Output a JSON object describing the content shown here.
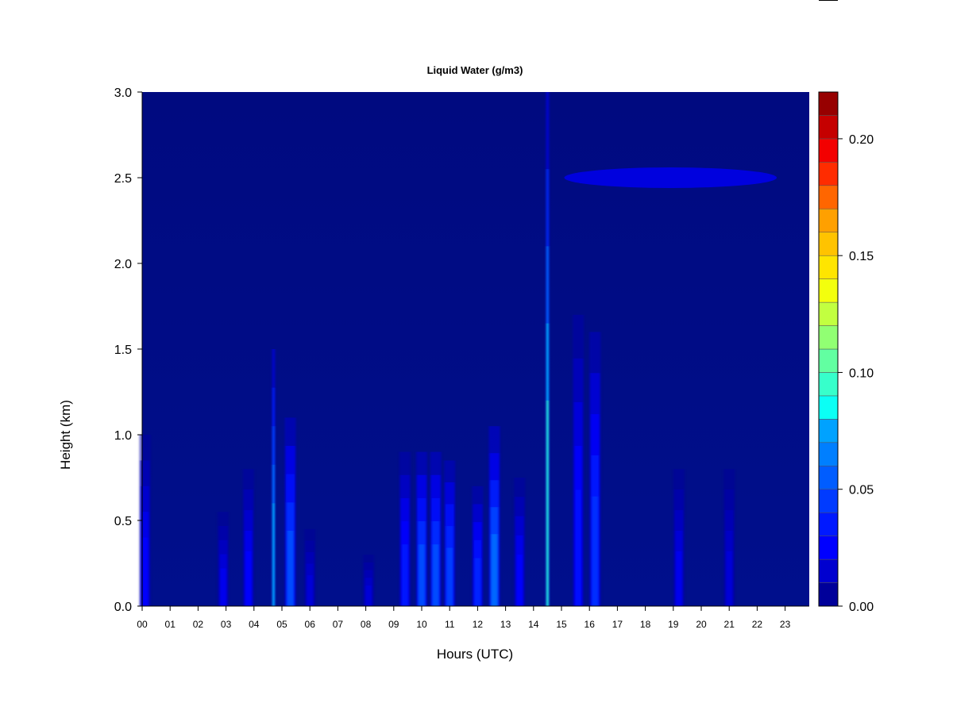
{
  "chart_data": {
    "type": "heatmap",
    "title": "Liquid Water (g/m3)",
    "xlabel": "Hours (UTC)",
    "ylabel": "Height (km)",
    "x_ticks": [
      "00",
      "01",
      "02",
      "03",
      "04",
      "05",
      "06",
      "07",
      "08",
      "09",
      "10",
      "11",
      "12",
      "13",
      "14",
      "15",
      "16",
      "17",
      "18",
      "19",
      "20",
      "21",
      "22",
      "23"
    ],
    "y_ticks": [
      "0.0",
      "0.5",
      "1.0",
      "1.5",
      "2.0",
      "2.5",
      "3.0"
    ],
    "xlim": [
      0,
      24
    ],
    "ylim": [
      0,
      3.0
    ],
    "colorbar": {
      "ticks": [
        "0.00",
        "0.05",
        "0.10",
        "0.15",
        "0.20"
      ],
      "tick_values": [
        0,
        0.05,
        0.1,
        0.15,
        0.2
      ],
      "range": [
        0,
        0.22
      ],
      "levels": 22,
      "colormap": "jet"
    },
    "background_value": 0.0,
    "features": [
      {
        "hour": 0.1,
        "top_km": 1.0,
        "max": 0.03
      },
      {
        "hour": 2.9,
        "top_km": 0.55,
        "max": 0.025
      },
      {
        "hour": 3.8,
        "top_km": 0.8,
        "max": 0.03
      },
      {
        "hour": 4.7,
        "top_km": 1.5,
        "max": 0.09
      },
      {
        "hour": 5.3,
        "top_km": 1.1,
        "max": 0.06
      },
      {
        "hour": 6.0,
        "top_km": 0.45,
        "max": 0.02
      },
      {
        "hour": 8.1,
        "top_km": 0.3,
        "max": 0.02
      },
      {
        "hour": 9.4,
        "top_km": 0.9,
        "max": 0.04
      },
      {
        "hour": 10.0,
        "top_km": 0.9,
        "max": 0.06
      },
      {
        "hour": 10.5,
        "top_km": 0.9,
        "max": 0.06
      },
      {
        "hour": 11.0,
        "top_km": 0.85,
        "max": 0.055
      },
      {
        "hour": 12.0,
        "top_km": 0.7,
        "max": 0.045
      },
      {
        "hour": 12.6,
        "top_km": 1.05,
        "max": 0.07
      },
      {
        "hour": 13.5,
        "top_km": 0.75,
        "max": 0.03
      },
      {
        "hour": 14.5,
        "top_km": 3.0,
        "max": 0.11
      },
      {
        "hour": 15.6,
        "top_km": 1.7,
        "max": 0.035
      },
      {
        "hour": 16.2,
        "top_km": 1.6,
        "max": 0.05
      },
      {
        "hour": 19.2,
        "top_km": 0.8,
        "max": 0.025
      },
      {
        "hour": 21.0,
        "top_km": 0.8,
        "max": 0.02
      }
    ],
    "layers": [
      {
        "hour_start": 15.1,
        "hour_end": 22.7,
        "height_km": 2.5,
        "thickness_km": 0.12,
        "max": 0.015
      }
    ]
  }
}
